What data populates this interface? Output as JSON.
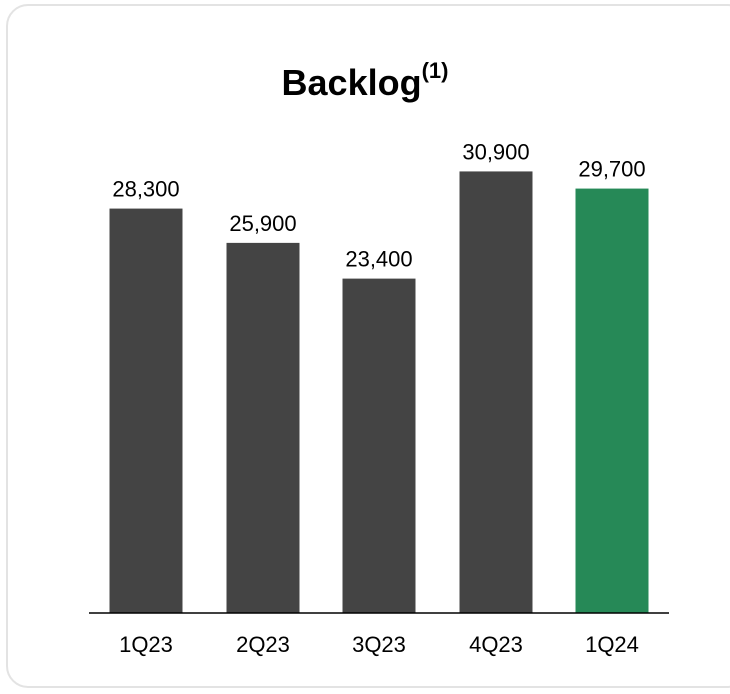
{
  "chart_data": {
    "type": "bar",
    "title": "Backlog",
    "title_superscript": "(1)",
    "categories": [
      "1Q23",
      "2Q23",
      "3Q23",
      "4Q23",
      "1Q24"
    ],
    "values": [
      28300,
      25900,
      23400,
      30900,
      29700
    ],
    "value_labels": [
      "28,300",
      "25,900",
      "23,400",
      "30,900",
      "29,700"
    ],
    "bar_colors": [
      "#444444",
      "#444444",
      "#444444",
      "#444444",
      "#268957"
    ],
    "ylim": [
      0,
      31000
    ],
    "grid": false,
    "legend": "none",
    "xlabel": "",
    "ylabel": ""
  }
}
